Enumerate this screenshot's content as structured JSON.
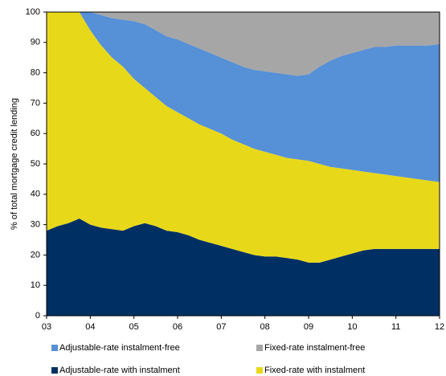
{
  "chart_data": {
    "type": "stacked-area",
    "y_label": "% of total mortgage credit lending",
    "x": [
      3,
      3.25,
      3.5,
      3.75,
      4,
      4.25,
      4.5,
      4.75,
      5,
      5.25,
      5.5,
      5.75,
      6,
      6.25,
      6.5,
      6.75,
      7,
      7.25,
      7.5,
      7.75,
      8,
      8.25,
      8.5,
      8.75,
      9,
      9.25,
      9.5,
      9.75,
      10,
      10.25,
      10.5,
      10.75,
      11,
      11.25,
      11.5,
      11.75,
      12
    ],
    "series": [
      {
        "name": "Adjustable-rate with instalment",
        "color": "#003063",
        "values": [
          28,
          29.5,
          30.5,
          32,
          30,
          29,
          28.5,
          28,
          29.5,
          30.5,
          29.5,
          28,
          27.5,
          26.5,
          25,
          24,
          23,
          22,
          21,
          20,
          19.5,
          19.5,
          19,
          18.5,
          17.5,
          17.5,
          18.5,
          19.5,
          20.5,
          21.5,
          22,
          22,
          22,
          22,
          22,
          22,
          22
        ]
      },
      {
        "name": "Fixed-rate with instalment",
        "color": "#e8d81a",
        "values": [
          72,
          70.5,
          69.5,
          68,
          64,
          60,
          56.5,
          54,
          48.5,
          44.5,
          42.5,
          41,
          39.5,
          38.5,
          38,
          37.5,
          37,
          36,
          35.5,
          35,
          34.5,
          33.5,
          33,
          33,
          33.5,
          32.5,
          30.5,
          29,
          27.5,
          26,
          25,
          24.5,
          24,
          23.5,
          23,
          22.5,
          22
        ]
      },
      {
        "name": "Adjustable-rate instalment-free",
        "color": "#5690d6",
        "values": [
          0,
          0,
          0,
          0,
          6,
          10,
          13,
          15.5,
          19,
          21,
          22,
          23,
          24,
          24.5,
          25,
          25,
          25,
          25.5,
          25.5,
          26,
          26.5,
          27,
          27.5,
          27.5,
          28.5,
          32,
          35,
          37,
          38.5,
          40,
          41.5,
          42,
          43,
          43.5,
          44,
          44.5,
          45.5
        ]
      },
      {
        "name": "Fixed-rate instalment-free",
        "color": "#a6a6a6",
        "values": [
          0,
          0,
          0,
          0,
          0,
          1,
          2,
          2.5,
          3,
          4,
          6,
          8,
          9,
          10.5,
          12,
          13.5,
          15,
          16.5,
          18,
          19,
          19.5,
          20,
          20.5,
          21,
          20.5,
          18,
          16,
          14.5,
          13.5,
          12.5,
          11.5,
          11.5,
          11,
          11,
          11,
          11,
          10.5
        ]
      }
    ],
    "xlim": [
      3,
      12
    ],
    "xticks": [
      {
        "value": 3,
        "label": "03"
      },
      {
        "value": 4,
        "label": "04"
      },
      {
        "value": 5,
        "label": "05"
      },
      {
        "value": 6,
        "label": "06"
      },
      {
        "value": 7,
        "label": "07"
      },
      {
        "value": 8,
        "label": "08"
      },
      {
        "value": 9,
        "label": "09"
      },
      {
        "value": 10,
        "label": "10"
      },
      {
        "value": 11,
        "label": "11"
      },
      {
        "value": 12,
        "label": "12"
      }
    ],
    "ylim": [
      0,
      100
    ],
    "yticks": [
      0,
      10,
      20,
      30,
      40,
      50,
      60,
      70,
      80,
      90,
      100
    ]
  }
}
